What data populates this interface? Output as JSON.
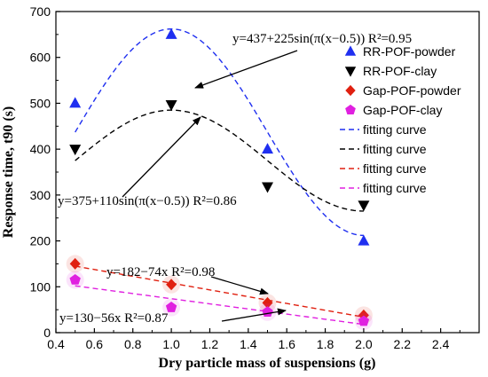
{
  "chart_data": {
    "type": "scatter",
    "xlabel": "Dry particle mass of suspensions (g)",
    "ylabel": "Response time, t90 (s)",
    "xlim": [
      0.4,
      2.6
    ],
    "ylim": [
      0,
      700
    ],
    "xticks": [
      "0.4",
      "0.6",
      "0.8",
      "1.0",
      "1.2",
      "1.4",
      "1.6",
      "1.8",
      "2.0",
      "2.2",
      "2.4"
    ],
    "yticks": [
      "0",
      "100",
      "200",
      "300",
      "400",
      "500",
      "600",
      "700"
    ],
    "grid": false,
    "legend_position": "top-right",
    "series": [
      {
        "name": "RR-POF-powder",
        "marker": "triangle-up",
        "color": "#1f2ff0",
        "x": [
          0.5,
          1.0,
          1.5,
          2.0
        ],
        "y": [
          500,
          650,
          400,
          200
        ]
      },
      {
        "name": "RR-POF-clay",
        "marker": "triangle-down",
        "color": "#000000",
        "x": [
          0.5,
          1.0,
          1.5,
          2.0
        ],
        "y": [
          400,
          497,
          318,
          278
        ]
      },
      {
        "name": "Gap-POF-powder",
        "marker": "diamond",
        "color": "#e02010",
        "x": [
          0.5,
          1.0,
          1.5,
          2.0
        ],
        "y": [
          150,
          105,
          65,
          38
        ]
      },
      {
        "name": "Gap-POF-clay",
        "marker": "pentagon",
        "color": "#e020e0",
        "x": [
          0.5,
          1.0,
          1.5,
          2.0
        ],
        "y": [
          115,
          55,
          45,
          25
        ]
      }
    ],
    "fits": [
      {
        "name": "fitting curve",
        "color": "#1f2ff0",
        "model": "sine",
        "a": 437,
        "b": 225
      },
      {
        "name": "fitting curve",
        "color": "#000000",
        "model": "sine",
        "a": 375,
        "b": 110
      },
      {
        "name": "fitting curve",
        "color": "#e02010",
        "model": "linear",
        "a": 182,
        "b": -74
      },
      {
        "name": "fitting curve",
        "color": "#e020e0",
        "model": "linear",
        "a": 130,
        "b": -56
      }
    ],
    "fit_domain": [
      0.5,
      2.0
    ],
    "annotations": [
      {
        "text": "y=437+225sin(π(x−0.5))  R²=0.95"
      },
      {
        "text": "y=375+110sin(π(x−0.5))  R²=0.86"
      },
      {
        "text": "y=182−74x  R²=0.98"
      },
      {
        "text": "y=130−56x  R²=0.87"
      }
    ]
  }
}
